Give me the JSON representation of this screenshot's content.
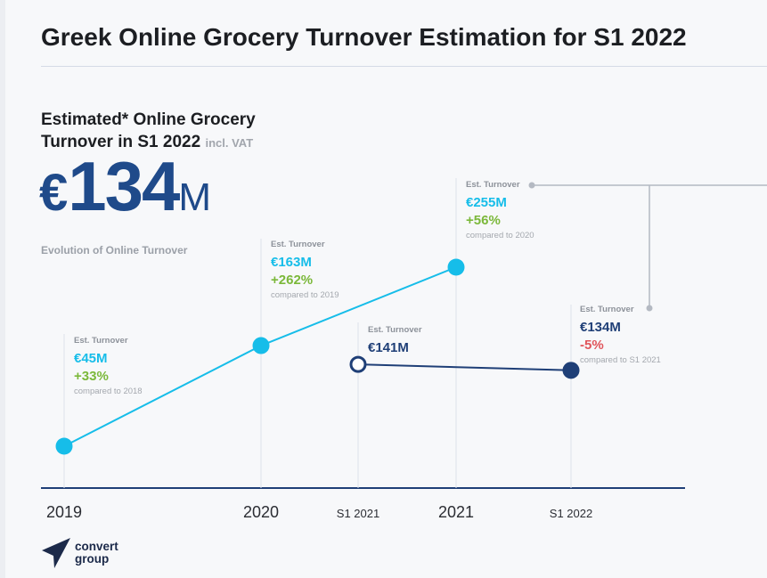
{
  "title": "Greek Online Grocery Turnover Estimation for S1 2022",
  "headline": {
    "line1": "Estimated* Online Grocery",
    "line2": "Turnover in S1 2022",
    "note": "incl. VAT"
  },
  "big_value": {
    "currency": "€",
    "number": "134",
    "unit": "M"
  },
  "subheading": "Evolution of Online Turnover",
  "logo": {
    "text": "convert\ngroup"
  },
  "colors": {
    "annual": "#16bde9",
    "semester": "#1f3f77",
    "increase": "#7bb83a",
    "decrease": "#e0555b"
  },
  "chart_data": {
    "type": "line",
    "title": "",
    "xlabel": "",
    "ylabel": "",
    "x": [
      "2019",
      "S1 2021",
      "2020",
      "2021",
      "S1 2022"
    ],
    "series": [
      {
        "points": [
          {
            "x": "2019",
            "value": 45,
            "label_key": "Est. Turnover",
            "label_value": "€45M",
            "change": "+33%",
            "compared": "compared to 2018"
          },
          {
            "x": "2020",
            "value": 163,
            "label_key": "Est. Turnover",
            "label_value": "€163M",
            "change": "+262%",
            "compared": "compared to 2019"
          },
          {
            "x": "2021",
            "value": 255,
            "label_key": "Est. Turnover",
            "label_value": "€255M",
            "change": "+56%",
            "compared": "compared to 2020"
          }
        ]
      },
      {
        "points": [
          {
            "x": "S1 2021",
            "value": 141,
            "label_key": "Est. Turnover",
            "label_value": "€141M"
          },
          {
            "x": "S1 2022",
            "value": 134,
            "label_key": "Est. Turnover",
            "label_value": "€134M",
            "change": "-5%",
            "compared": "compared to S1 2021"
          }
        ]
      }
    ],
    "ticks": [
      {
        "label": "2019"
      },
      {
        "label": "2020"
      },
      {
        "label": "S1 2021"
      },
      {
        "label": "2021"
      },
      {
        "label": "S1 2022"
      }
    ]
  }
}
